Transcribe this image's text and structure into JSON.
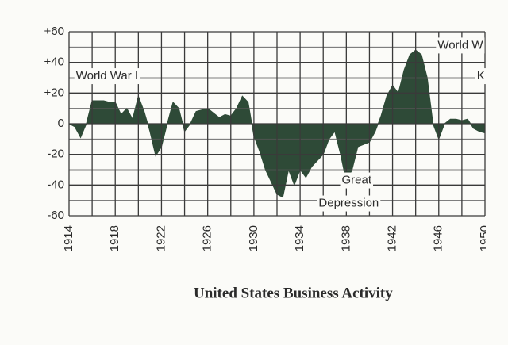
{
  "chart_data": {
    "type": "area",
    "title": "United States Business Activity",
    "color": "#2e4a37",
    "xlim": [
      1914,
      1950
    ],
    "ylim": [
      -60,
      60
    ],
    "xticks": [
      1914,
      1918,
      1922,
      1926,
      1930,
      1934,
      1938,
      1942,
      1946,
      1950
    ],
    "x_minor_ticks": [
      1916,
      1920,
      1924,
      1928,
      1932,
      1936,
      1940,
      1944,
      1948
    ],
    "yticks": [
      {
        "value": 60,
        "label": "+60"
      },
      {
        "value": 40,
        "label": "+40"
      },
      {
        "value": 20,
        "label": "+20"
      },
      0,
      -20,
      -40,
      -60
    ],
    "y_minor_ticks": [
      50,
      30,
      10,
      -10,
      -30,
      -50
    ],
    "grid": true,
    "annotations": [
      {
        "text": "World War I",
        "x": 1914.6,
        "y": 31
      },
      {
        "text": "World W",
        "x": 1945.9,
        "y": 51
      },
      {
        "text": "K",
        "x": 1949.3,
        "y": 31
      },
      {
        "text": "Great",
        "x": 1937.6,
        "y": -37
      },
      {
        "text": "Depression",
        "x": 1935.6,
        "y": -52
      }
    ],
    "x": [
      1914,
      1914.5,
      1915,
      1915.5,
      1916,
      1917,
      1917.5,
      1918,
      1918.5,
      1919,
      1919.5,
      1920,
      1920.5,
      1921,
      1921.5,
      1922,
      1922.5,
      1923,
      1923.5,
      1924,
      1924.5,
      1925,
      1926,
      1926.5,
      1927,
      1927.5,
      1928,
      1928.5,
      1929,
      1929.5,
      1930,
      1930.5,
      1931,
      1931.5,
      1932,
      1932.5,
      1933,
      1933.5,
      1934,
      1934.5,
      1935,
      1936,
      1936.5,
      1937,
      1937.5,
      1938,
      1938.5,
      1939,
      1940,
      1940.5,
      1941,
      1941.5,
      1942,
      1942.5,
      1943,
      1943.5,
      1944,
      1944.5,
      1945,
      1945.5,
      1946,
      1946.5,
      1947,
      1947.5,
      1948,
      1948.5,
      1949,
      1949.5,
      1950
    ],
    "values": [
      0,
      -2,
      -9,
      0,
      15,
      15,
      14,
      14,
      6,
      10,
      3,
      18,
      8,
      -5,
      -21,
      -15,
      0,
      14,
      10,
      -5,
      0,
      8,
      10,
      7,
      4,
      6,
      5,
      10,
      18,
      14,
      -8,
      -18,
      -30,
      -38,
      -46,
      -48,
      -30,
      -40,
      -30,
      -35,
      -28,
      -20,
      -10,
      -5,
      -20,
      -38,
      -30,
      -15,
      -12,
      -5,
      5,
      18,
      25,
      20,
      35,
      45,
      48,
      45,
      30,
      0,
      -10,
      0,
      3,
      3,
      2,
      3,
      -3,
      -5,
      -6
    ]
  }
}
